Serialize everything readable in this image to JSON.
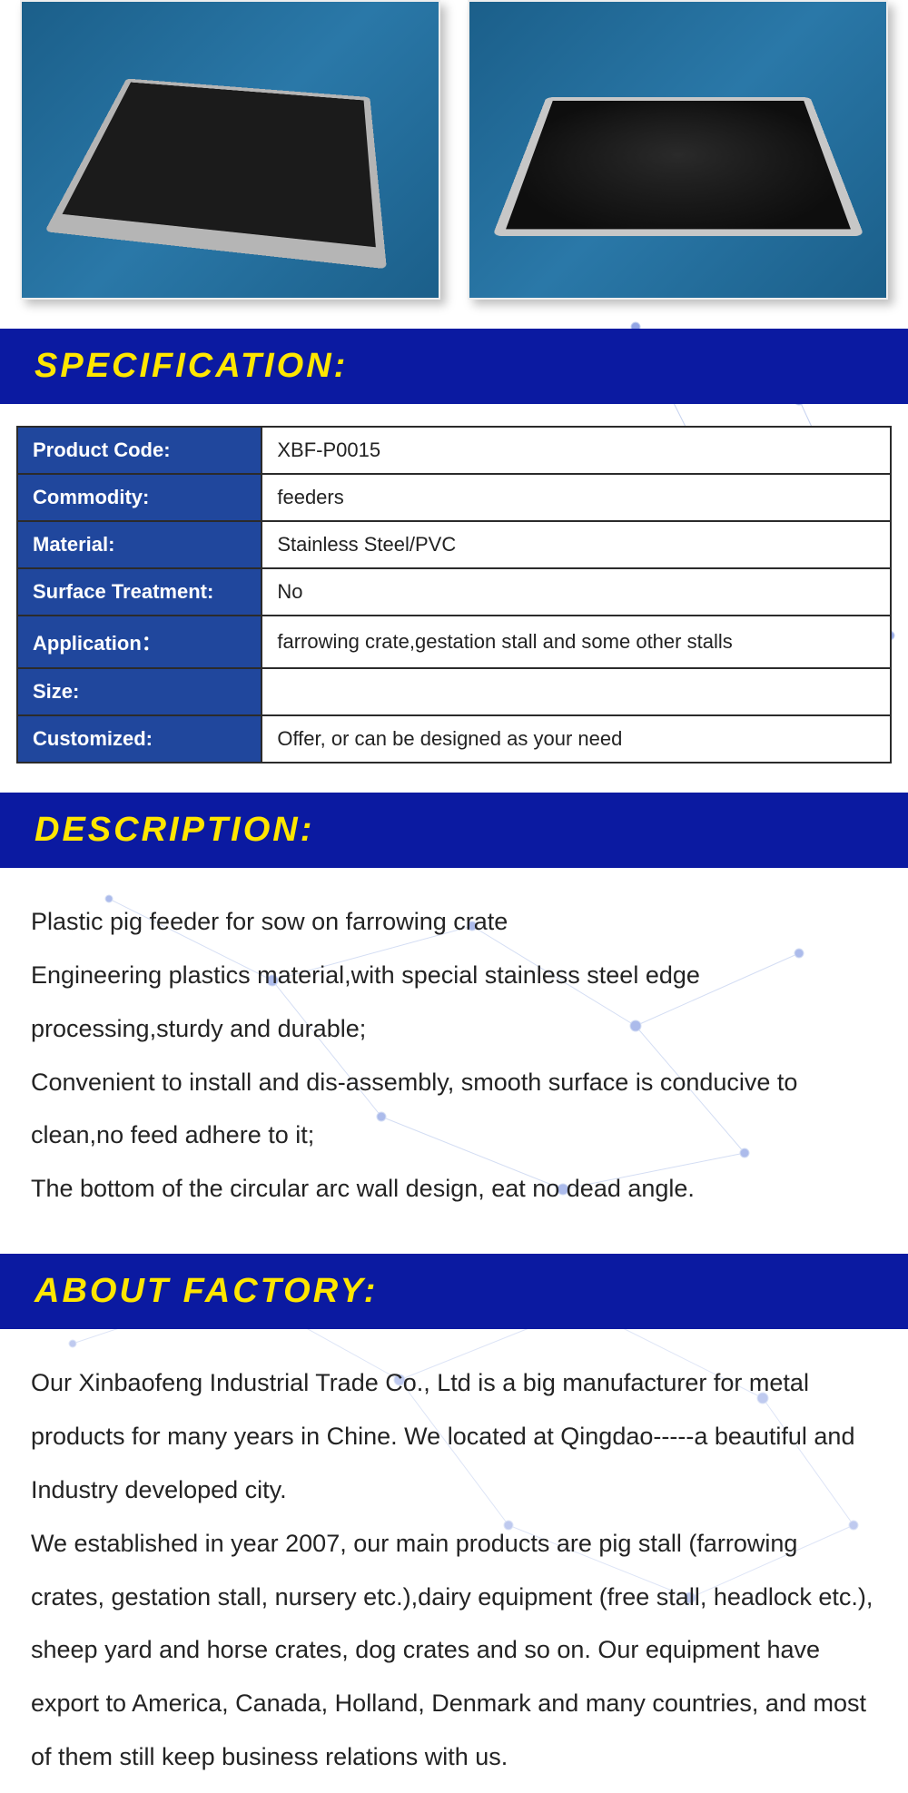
{
  "sections": {
    "specification_title": "SPECIFICATION:",
    "description_title": "DESCRIPTION:",
    "factory_title": "ABOUT FACTORY:"
  },
  "spec_table": {
    "rows": [
      {
        "label": "Product Code:",
        "value": "XBF-P0015"
      },
      {
        "label": "Commodity:",
        "value": "feeders"
      },
      {
        "label": "Material:",
        "value": "Stainless Steel/PVC"
      },
      {
        "label": "Surface Treatment:",
        "value": "No"
      },
      {
        "label": "Application：",
        "value": "farrowing crate,gestation stall and some other stalls"
      },
      {
        "label": "Size:",
        "value": ""
      },
      {
        "label": "Customized:",
        "value": "Offer, or can be designed as your need"
      }
    ]
  },
  "description": {
    "lines": [
      "Plastic pig feeder for sow on farrowing crate",
      "Engineering plastics material,with special stainless steel edge processing,sturdy and durable;",
      "Convenient to install and dis-assembly, smooth surface is conducive to clean,no feed adhere to it;",
      "The bottom of the circular arc wall design, eat no dead angle."
    ]
  },
  "factory": {
    "paragraphs": [
      "Our Xinbaofeng Industrial Trade Co., Ltd is a big manufacturer for metal products for many years in Chine. We located at Qingdao-----a beautiful and Industry developed city.",
      "We established in year 2007, our main products are pig stall (farrowing crates, gestation stall, nursery etc.),dairy equipment (free stall, headlock etc.), sheep yard and horse crates, dog crates and so on. Our equipment have export to America, Canada, Holland, Denmark and many countries, and most of them still keep business relations with us."
    ]
  },
  "colors": {
    "section_bar_bg": "#0b1aa1",
    "section_title_color": "#ffe600",
    "table_header_bg": "#20479d",
    "table_header_color": "#ffffff",
    "table_border": "#2b2b2b",
    "body_text_color": "#232323",
    "network_line": "#9fb4e6",
    "network_node": "#4a6ad4"
  }
}
